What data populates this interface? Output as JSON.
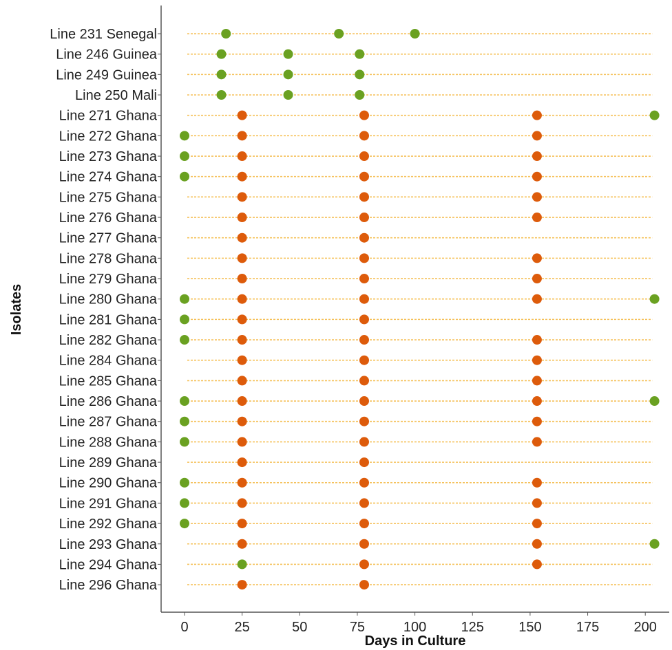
{
  "chart_data": {
    "type": "scatter",
    "xlabel": "Days in Culture",
    "ylabel": "Isolates",
    "xlim": [
      -10,
      206
    ],
    "x_ticks": [
      0,
      25,
      50,
      75,
      100,
      125,
      150,
      175,
      200
    ],
    "x_tick_labels": [
      "0",
      "25",
      "50",
      "75",
      "100",
      "125",
      "150",
      "175",
      "200"
    ],
    "grid": false,
    "colors": {
      "green": "#6aa121",
      "orange": "#dd5b0b",
      "guide": "#f5c15a"
    },
    "rows": [
      {
        "label": "Line 231 Senegal",
        "line_end": 203,
        "points": [
          {
            "x": 18,
            "color": "green"
          },
          {
            "x": 67,
            "color": "green"
          },
          {
            "x": 100,
            "color": "green"
          }
        ]
      },
      {
        "label": "Line 246 Guinea",
        "line_end": 203,
        "points": [
          {
            "x": 16,
            "color": "green"
          },
          {
            "x": 45,
            "color": "green"
          },
          {
            "x": 76,
            "color": "green"
          }
        ]
      },
      {
        "label": "Line 249 Guinea",
        "line_end": 203,
        "points": [
          {
            "x": 16,
            "color": "green"
          },
          {
            "x": 45,
            "color": "green"
          },
          {
            "x": 76,
            "color": "green"
          }
        ]
      },
      {
        "label": "Line 250 Mali",
        "line_end": 203,
        "points": [
          {
            "x": 16,
            "color": "green"
          },
          {
            "x": 45,
            "color": "green"
          },
          {
            "x": 76,
            "color": "green"
          }
        ]
      },
      {
        "label": "Line 271 Ghana",
        "line_end": 203,
        "points": [
          {
            "x": 25,
            "color": "orange"
          },
          {
            "x": 78,
            "color": "orange"
          },
          {
            "x": 153,
            "color": "orange"
          },
          {
            "x": 204,
            "color": "green"
          }
        ]
      },
      {
        "label": "Line 272 Ghana",
        "line_end": 203,
        "points": [
          {
            "x": 0,
            "color": "green"
          },
          {
            "x": 25,
            "color": "orange"
          },
          {
            "x": 78,
            "color": "orange"
          },
          {
            "x": 153,
            "color": "orange"
          }
        ]
      },
      {
        "label": "Line 273 Ghana",
        "line_end": 203,
        "points": [
          {
            "x": 0,
            "color": "green"
          },
          {
            "x": 25,
            "color": "orange"
          },
          {
            "x": 78,
            "color": "orange"
          },
          {
            "x": 153,
            "color": "orange"
          }
        ]
      },
      {
        "label": "Line 274 Ghana",
        "line_end": 203,
        "points": [
          {
            "x": 0,
            "color": "green"
          },
          {
            "x": 25,
            "color": "orange"
          },
          {
            "x": 78,
            "color": "orange"
          },
          {
            "x": 153,
            "color": "orange"
          }
        ]
      },
      {
        "label": "Line 275 Ghana",
        "line_end": 203,
        "points": [
          {
            "x": 25,
            "color": "orange"
          },
          {
            "x": 78,
            "color": "orange"
          },
          {
            "x": 153,
            "color": "orange"
          }
        ]
      },
      {
        "label": "Line 276 Ghana",
        "line_end": 203,
        "points": [
          {
            "x": 25,
            "color": "orange"
          },
          {
            "x": 78,
            "color": "orange"
          },
          {
            "x": 153,
            "color": "orange"
          }
        ]
      },
      {
        "label": "Line 277 Ghana",
        "line_end": 203,
        "points": [
          {
            "x": 25,
            "color": "orange"
          },
          {
            "x": 78,
            "color": "orange"
          }
        ]
      },
      {
        "label": "Line 278 Ghana",
        "line_end": 203,
        "points": [
          {
            "x": 25,
            "color": "orange"
          },
          {
            "x": 78,
            "color": "orange"
          },
          {
            "x": 153,
            "color": "orange"
          }
        ]
      },
      {
        "label": "Line 279 Ghana",
        "line_end": 203,
        "points": [
          {
            "x": 25,
            "color": "orange"
          },
          {
            "x": 78,
            "color": "orange"
          },
          {
            "x": 153,
            "color": "orange"
          }
        ]
      },
      {
        "label": "Line 280 Ghana",
        "line_end": 203,
        "points": [
          {
            "x": 0,
            "color": "green"
          },
          {
            "x": 25,
            "color": "orange"
          },
          {
            "x": 78,
            "color": "orange"
          },
          {
            "x": 153,
            "color": "orange"
          },
          {
            "x": 204,
            "color": "green"
          }
        ]
      },
      {
        "label": "Line 281 Ghana",
        "line_end": 203,
        "points": [
          {
            "x": 0,
            "color": "green"
          },
          {
            "x": 25,
            "color": "orange"
          },
          {
            "x": 78,
            "color": "orange"
          }
        ]
      },
      {
        "label": "Line 282 Ghana",
        "line_end": 203,
        "points": [
          {
            "x": 0,
            "color": "green"
          },
          {
            "x": 25,
            "color": "orange"
          },
          {
            "x": 78,
            "color": "orange"
          },
          {
            "x": 153,
            "color": "orange"
          }
        ]
      },
      {
        "label": "Line 284 Ghana",
        "line_end": 203,
        "points": [
          {
            "x": 25,
            "color": "orange"
          },
          {
            "x": 78,
            "color": "orange"
          },
          {
            "x": 153,
            "color": "orange"
          }
        ]
      },
      {
        "label": "Line 285 Ghana",
        "line_end": 203,
        "points": [
          {
            "x": 25,
            "color": "orange"
          },
          {
            "x": 78,
            "color": "orange"
          },
          {
            "x": 153,
            "color": "orange"
          }
        ]
      },
      {
        "label": "Line 286 Ghana",
        "line_end": 203,
        "points": [
          {
            "x": 0,
            "color": "green"
          },
          {
            "x": 25,
            "color": "orange"
          },
          {
            "x": 78,
            "color": "orange"
          },
          {
            "x": 153,
            "color": "orange"
          },
          {
            "x": 204,
            "color": "green"
          }
        ]
      },
      {
        "label": "Line 287 Ghana",
        "line_end": 203,
        "points": [
          {
            "x": 0,
            "color": "green"
          },
          {
            "x": 25,
            "color": "orange"
          },
          {
            "x": 78,
            "color": "orange"
          },
          {
            "x": 153,
            "color": "orange"
          }
        ]
      },
      {
        "label": "Line 288 Ghana",
        "line_end": 203,
        "points": [
          {
            "x": 0,
            "color": "green"
          },
          {
            "x": 25,
            "color": "orange"
          },
          {
            "x": 78,
            "color": "orange"
          },
          {
            "x": 153,
            "color": "orange"
          }
        ]
      },
      {
        "label": "Line 289 Ghana",
        "line_end": 203,
        "points": [
          {
            "x": 25,
            "color": "orange"
          },
          {
            "x": 78,
            "color": "orange"
          }
        ]
      },
      {
        "label": "Line 290 Ghana",
        "line_end": 203,
        "points": [
          {
            "x": 0,
            "color": "green"
          },
          {
            "x": 25,
            "color": "orange"
          },
          {
            "x": 78,
            "color": "orange"
          },
          {
            "x": 153,
            "color": "orange"
          }
        ]
      },
      {
        "label": "Line 291 Ghana",
        "line_end": 203,
        "points": [
          {
            "x": 0,
            "color": "green"
          },
          {
            "x": 25,
            "color": "orange"
          },
          {
            "x": 78,
            "color": "orange"
          },
          {
            "x": 153,
            "color": "orange"
          }
        ]
      },
      {
        "label": "Line 292 Ghana",
        "line_end": 203,
        "points": [
          {
            "x": 0,
            "color": "green"
          },
          {
            "x": 25,
            "color": "orange"
          },
          {
            "x": 78,
            "color": "orange"
          },
          {
            "x": 153,
            "color": "orange"
          }
        ]
      },
      {
        "label": "Line 293 Ghana",
        "line_end": 203,
        "points": [
          {
            "x": 25,
            "color": "orange"
          },
          {
            "x": 78,
            "color": "orange"
          },
          {
            "x": 153,
            "color": "orange"
          },
          {
            "x": 204,
            "color": "green"
          }
        ]
      },
      {
        "label": "Line 294 Ghana",
        "line_end": 203,
        "points": [
          {
            "x": 25,
            "color": "green"
          },
          {
            "x": 78,
            "color": "orange"
          },
          {
            "x": 153,
            "color": "orange"
          }
        ]
      },
      {
        "label": "Line 296 Ghana",
        "line_end": 203,
        "points": [
          {
            "x": 25,
            "color": "orange"
          },
          {
            "x": 78,
            "color": "orange"
          }
        ]
      }
    ]
  }
}
